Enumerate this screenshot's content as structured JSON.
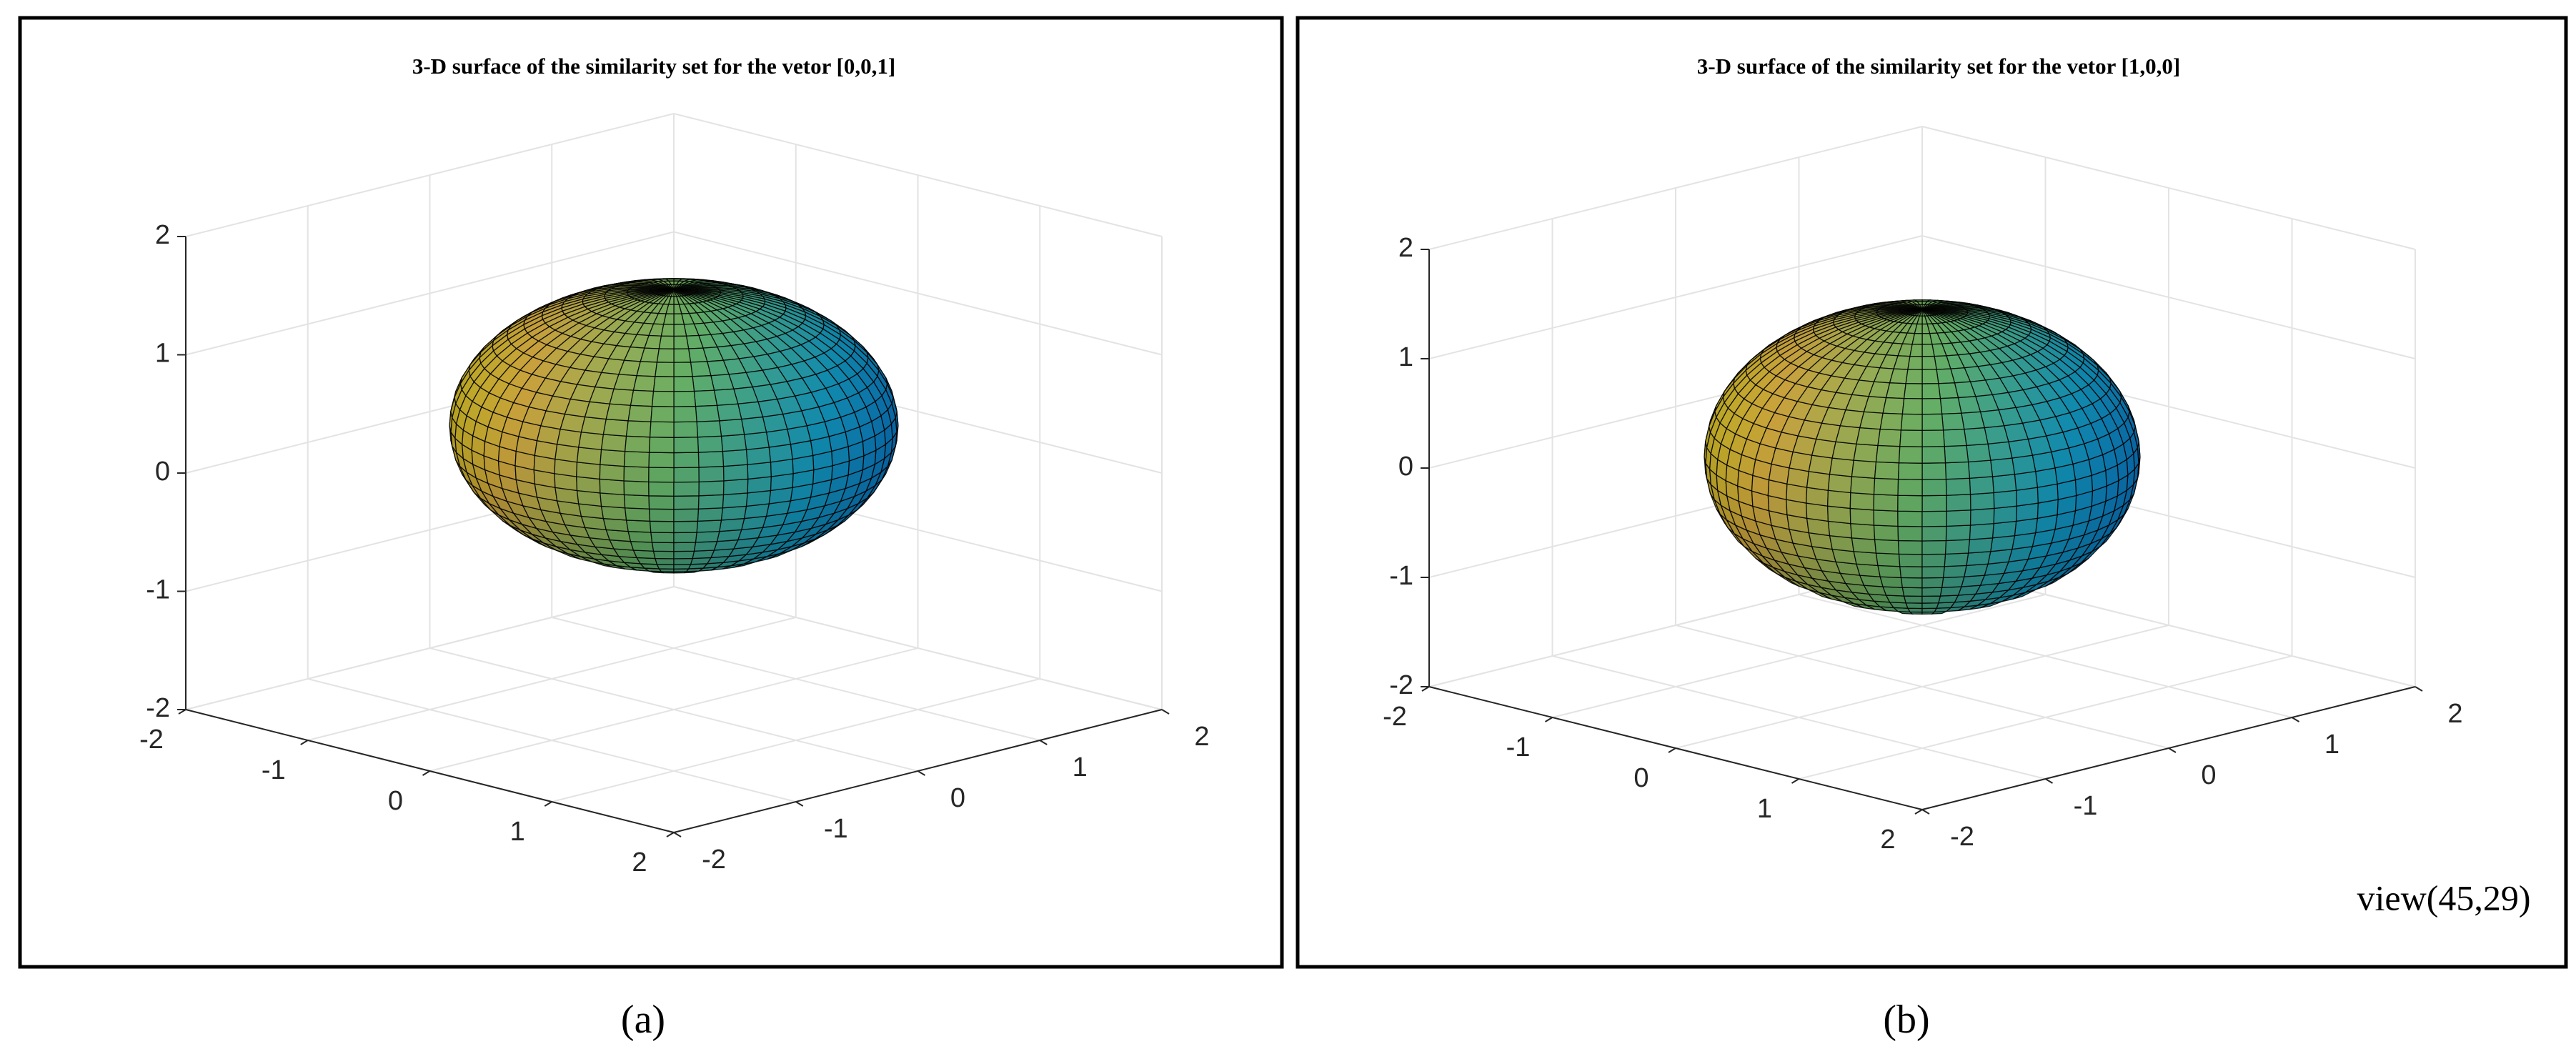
{
  "chart_data": [
    {
      "type": "surface",
      "title": "3-D surface of the similarity set for the vetor [0,0,1]",
      "label": "(a)",
      "xlim": [
        -2,
        2
      ],
      "ylim": [
        -2,
        2
      ],
      "zlim": [
        -2,
        2
      ],
      "xticks": [
        -2,
        -1,
        0,
        1,
        2
      ],
      "yticks": [
        -2,
        -1,
        0,
        1,
        2
      ],
      "zticks": [
        -2,
        -1,
        0,
        1,
        2
      ],
      "grid": true,
      "colormap": "parula",
      "center": [
        0,
        0,
        0.4
      ],
      "semi_axes": [
        1.3,
        1.3,
        1.15
      ]
    },
    {
      "type": "surface",
      "title": "3-D surface of the similarity set for the vetor [1,0,0]",
      "label": "(b)",
      "annotation": "view(45,29)",
      "xlim": [
        -2,
        2
      ],
      "ylim": [
        -2,
        2
      ],
      "zlim": [
        -2,
        2
      ],
      "xticks": [
        -2,
        -1,
        0,
        1,
        2
      ],
      "yticks": [
        -2,
        -1,
        0,
        1,
        2
      ],
      "zticks": [
        -2,
        -1,
        0,
        1,
        2
      ],
      "grid": true,
      "colormap": "parula",
      "center": [
        0,
        0,
        0.1
      ],
      "semi_axes": [
        1.25,
        1.25,
        1.35
      ]
    }
  ]
}
